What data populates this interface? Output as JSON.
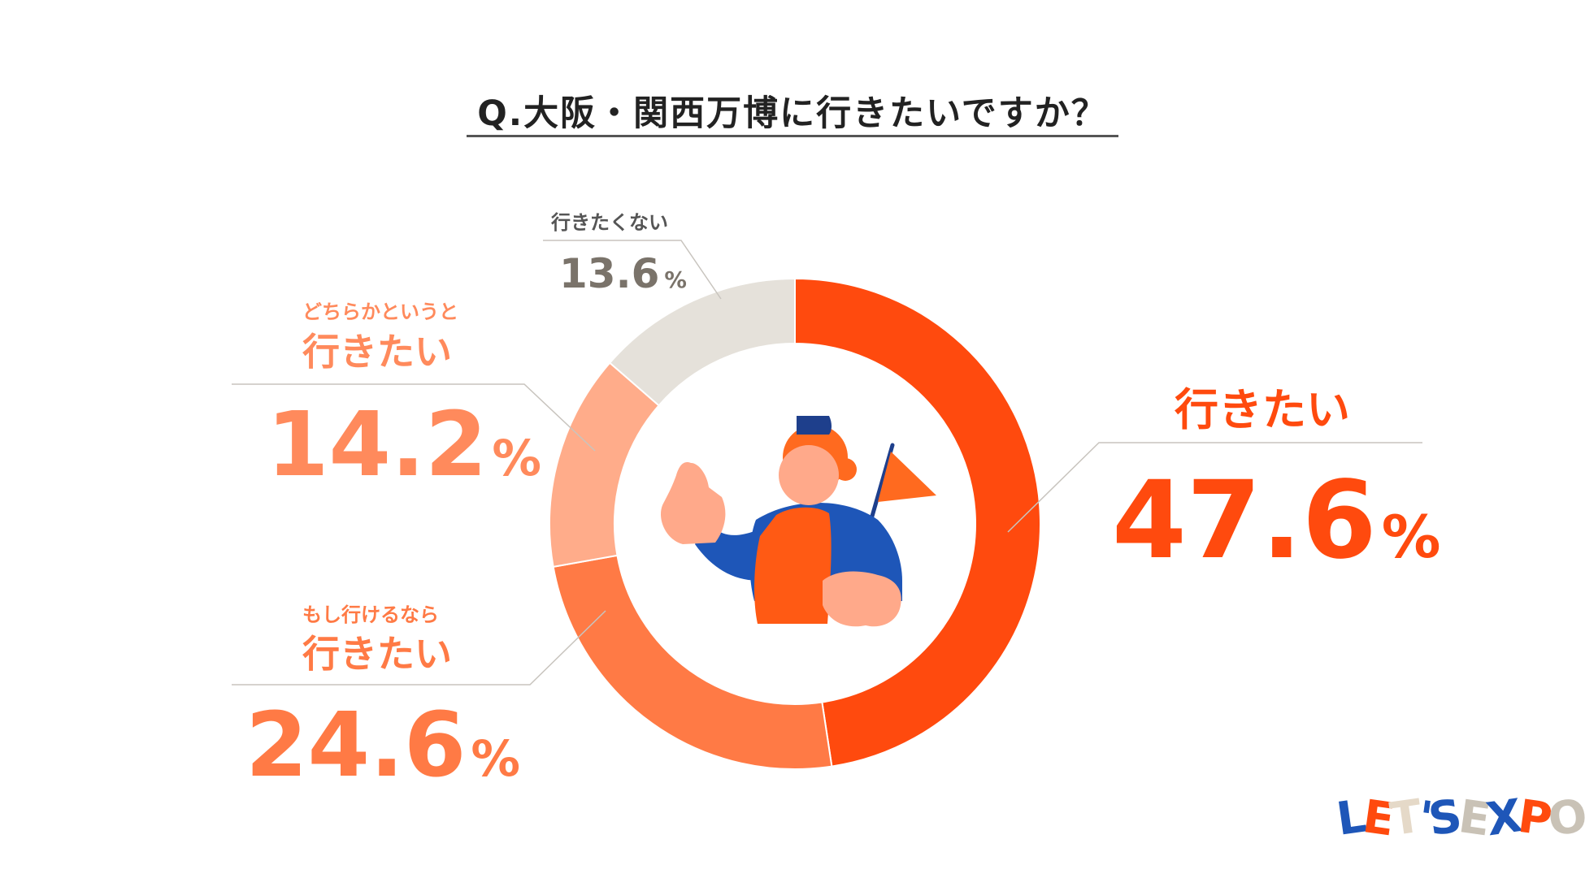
{
  "chart_data": {
    "type": "pie",
    "title": "Q.大阪・関西万博に行きたいですか？",
    "slices": [
      {
        "label": "行きたい",
        "sublabel": "",
        "value": 47.6,
        "value_label": "47.6",
        "color": "#FF4A0E"
      },
      {
        "label": "行きたい",
        "sublabel": "もし行けるなら",
        "value": 24.6,
        "value_label": "24.6",
        "color": "#FF7A45"
      },
      {
        "label": "行きたい",
        "sublabel": "どちらかというと",
        "value": 14.2,
        "value_label": "14.2",
        "color": "#FFAC8A"
      },
      {
        "label": "",
        "sublabel": "行きたくない",
        "value": 13.6,
        "value_label": "13.6",
        "color": "#E5E1DA"
      }
    ],
    "unit": "%",
    "legend": "none"
  },
  "logo": {
    "letters": [
      "L",
      "E",
      "T",
      "'",
      "S",
      "E",
      "X",
      "P",
      "O"
    ],
    "colors": [
      "#1E56B8",
      "#FF4A0E",
      "#E5D9C8",
      "#1E56B8",
      "#1E56B8",
      "#C9C2B6",
      "#1E56B8",
      "#FF4A0E",
      "#C9C2B6"
    ]
  },
  "illustration": {
    "name": "person-with-flag",
    "colors": {
      "skin": "#FFA98A",
      "hair": "#FF6A1F",
      "shirt": "#1E56B8",
      "vest": "#FF5A14",
      "cap": "#1E3F8C",
      "flag": "#FF6A1F",
      "pole": "#1E3F8C"
    }
  }
}
